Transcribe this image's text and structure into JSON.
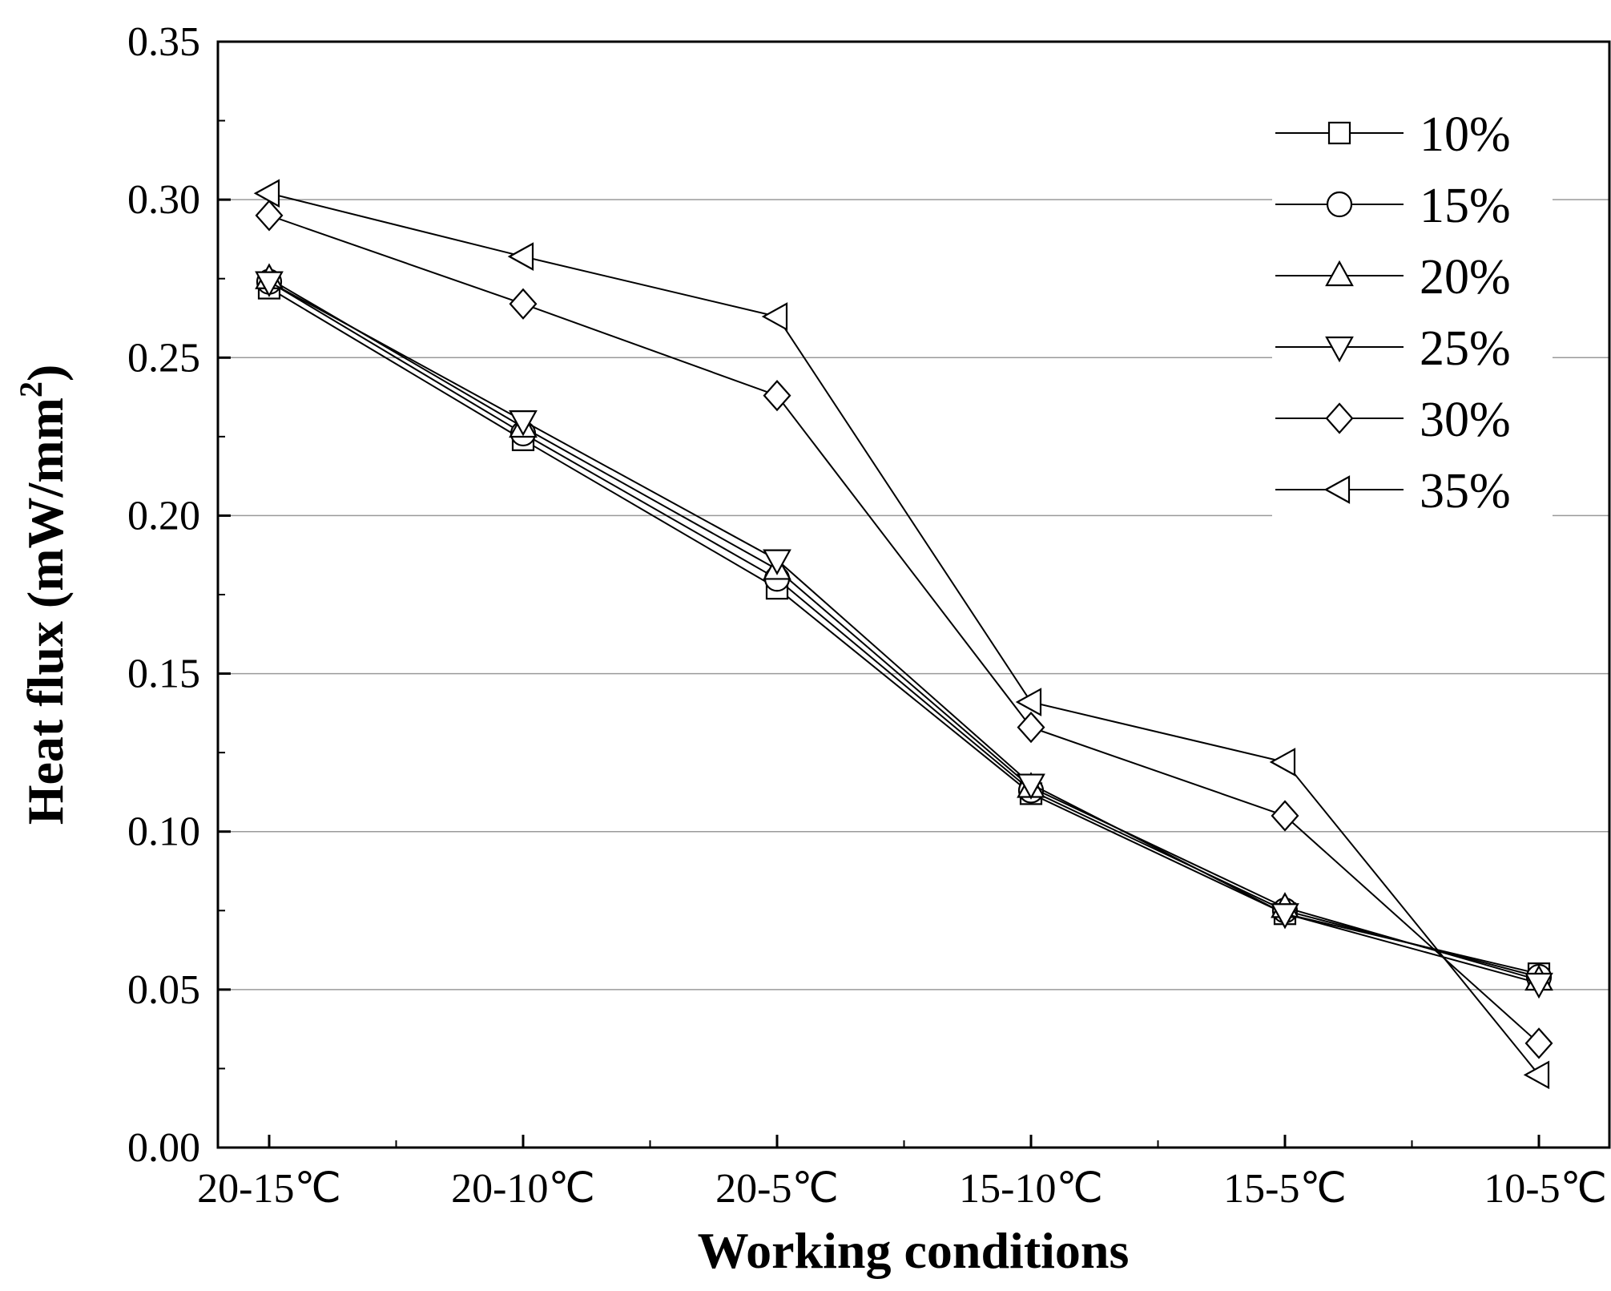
{
  "chart_data": {
    "type": "line",
    "title": "",
    "xlabel": "Working conditions",
    "ylabel": "Heat flux (mW/mm",
    "ylabel_superscript": "2",
    "ylabel_suffix": ")",
    "categories": [
      "20-15℃",
      "20-10℃",
      "20-5℃",
      "15-10℃",
      "15-5℃",
      "10-5℃"
    ],
    "ylim": [
      0,
      0.35
    ],
    "yticks": [
      "0.00",
      "0.05",
      "0.10",
      "0.15",
      "0.20",
      "0.25",
      "0.30",
      "0.35"
    ],
    "grid": "horizontal",
    "legend_position": "top-right",
    "series": [
      {
        "name": "10%",
        "marker": "square",
        "values": [
          0.272,
          0.224,
          0.177,
          0.112,
          0.074,
          0.055
        ]
      },
      {
        "name": "15%",
        "marker": "circle",
        "values": [
          0.274,
          0.226,
          0.18,
          0.113,
          0.075,
          0.054
        ]
      },
      {
        "name": "20%",
        "marker": "triangle-up",
        "values": [
          0.275,
          0.228,
          0.183,
          0.114,
          0.076,
          0.053
        ]
      },
      {
        "name": "25%",
        "marker": "triangle-down",
        "values": [
          0.274,
          0.23,
          0.186,
          0.115,
          0.074,
          0.052
        ]
      },
      {
        "name": "30%",
        "marker": "diamond",
        "values": [
          0.295,
          0.267,
          0.238,
          0.133,
          0.105,
          0.033
        ]
      },
      {
        "name": "35%",
        "marker": "triangle-left",
        "values": [
          0.302,
          0.282,
          0.263,
          0.141,
          0.122,
          0.023
        ]
      }
    ]
  }
}
